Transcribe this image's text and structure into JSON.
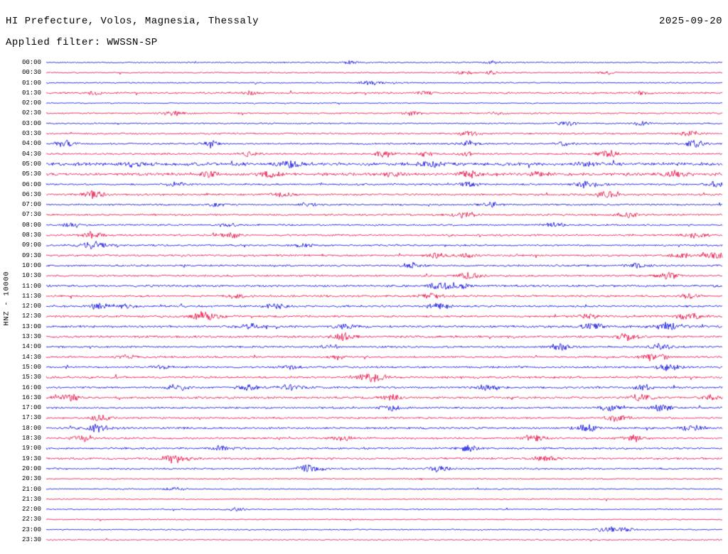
{
  "header": {
    "title": "HI Prefecture, Volos, Magnesia, Thessaly",
    "date": "2025-09-20",
    "filter_label": "Applied filter: WWSSN-SP"
  },
  "y_axis_label": "HNZ - 10000",
  "chart_data": {
    "type": "line",
    "kind": "seismogram-helicorder",
    "title": "HI Prefecture, Volos, Magnesia, Thessaly",
    "date": "2025-09-20",
    "filter": "WWSSN-SP",
    "channel": "HNZ",
    "gain": "10000",
    "row_interval_minutes": 30,
    "time_range": [
      "00:00",
      "23:30"
    ],
    "trace_color_cycle": [
      "blue",
      "red"
    ],
    "colors": {
      "blue": "#0000e0",
      "red": "#e8003c"
    },
    "rows": [
      {
        "time": "00:00",
        "color": "blue",
        "noise": 0.9,
        "bursts": [
          [
            0.45,
            1.5
          ],
          [
            0.66,
            1.5
          ]
        ]
      },
      {
        "time": "00:30",
        "color": "red",
        "noise": 0.9,
        "bursts": [
          [
            0.62,
            2.2
          ],
          [
            0.66,
            1.8
          ],
          [
            0.83,
            1.8
          ]
        ]
      },
      {
        "time": "01:00",
        "color": "blue",
        "noise": 0.9,
        "bursts": [
          [
            0.48,
            2.8
          ]
        ]
      },
      {
        "time": "01:30",
        "color": "red",
        "noise": 1.3,
        "bursts": [
          [
            0.07,
            1.8
          ],
          [
            0.3,
            1.8
          ],
          [
            0.56,
            1.8
          ],
          [
            0.88,
            1.8
          ]
        ]
      },
      {
        "time": "02:00",
        "color": "blue",
        "noise": 0.7,
        "bursts": []
      },
      {
        "time": "02:30",
        "color": "red",
        "noise": 1.0,
        "bursts": [
          [
            0.19,
            2.8
          ],
          [
            0.54,
            2.4
          ],
          [
            0.67,
            1.8
          ]
        ]
      },
      {
        "time": "03:00",
        "color": "blue",
        "noise": 1.0,
        "bursts": [
          [
            0.77,
            2.4
          ],
          [
            0.88,
            2.0
          ]
        ]
      },
      {
        "time": "03:30",
        "color": "red",
        "noise": 1.2,
        "bursts": [
          [
            0.625,
            2.4
          ],
          [
            0.95,
            3.2
          ]
        ]
      },
      {
        "time": "04:00",
        "color": "blue",
        "noise": 1.2,
        "bursts": [
          [
            0.03,
            3.4
          ],
          [
            0.24,
            2.4
          ],
          [
            0.625,
            3.0
          ],
          [
            0.77,
            2.0
          ],
          [
            0.96,
            3.4
          ]
        ]
      },
      {
        "time": "04:30",
        "color": "red",
        "noise": 1.2,
        "bursts": [
          [
            0.3,
            2.4
          ],
          [
            0.5,
            3.0
          ],
          [
            0.56,
            2.4
          ],
          [
            0.62,
            2.0
          ],
          [
            0.83,
            3.4
          ]
        ]
      },
      {
        "time": "05:00",
        "color": "blue",
        "noise": 2.2,
        "bursts": [
          [
            0.13,
            2.4
          ],
          [
            0.36,
            3.4
          ],
          [
            0.57,
            3.0
          ],
          [
            0.8,
            2.4
          ]
        ]
      },
      {
        "time": "05:30",
        "color": "red",
        "noise": 2.0,
        "bursts": [
          [
            0.24,
            3.0
          ],
          [
            0.33,
            3.0
          ],
          [
            0.51,
            2.4
          ],
          [
            0.625,
            3.0
          ],
          [
            0.73,
            2.4
          ],
          [
            0.93,
            3.0
          ]
        ]
      },
      {
        "time": "06:00",
        "color": "blue",
        "noise": 1.3,
        "bursts": [
          [
            0.19,
            2.4
          ],
          [
            0.625,
            3.0
          ],
          [
            0.8,
            3.4
          ],
          [
            0.99,
            3.0
          ]
        ]
      },
      {
        "time": "06:30",
        "color": "red",
        "noise": 1.4,
        "bursts": [
          [
            0.07,
            3.4
          ],
          [
            0.35,
            3.0
          ],
          [
            0.83,
            3.4
          ]
        ]
      },
      {
        "time": "07:00",
        "color": "blue",
        "noise": 1.2,
        "bursts": [
          [
            0.25,
            2.0
          ],
          [
            0.39,
            2.4
          ],
          [
            0.66,
            2.4
          ]
        ]
      },
      {
        "time": "07:30",
        "color": "red",
        "noise": 1.3,
        "bursts": [
          [
            0.62,
            3.4
          ],
          [
            0.86,
            3.0
          ]
        ]
      },
      {
        "time": "08:00",
        "color": "blue",
        "noise": 1.2,
        "bursts": [
          [
            0.04,
            2.4
          ],
          [
            0.27,
            2.4
          ],
          [
            0.75,
            2.4
          ]
        ]
      },
      {
        "time": "08:30",
        "color": "red",
        "noise": 1.3,
        "bursts": [
          [
            0.07,
            3.0
          ],
          [
            0.27,
            3.0
          ],
          [
            0.96,
            3.0
          ]
        ]
      },
      {
        "time": "09:00",
        "color": "blue",
        "noise": 1.2,
        "bursts": [
          [
            0.07,
            4.0
          ],
          [
            0.38,
            2.4
          ]
        ]
      },
      {
        "time": "09:30",
        "color": "red",
        "noise": 1.3,
        "bursts": [
          [
            0.58,
            3.0
          ],
          [
            0.625,
            2.4
          ],
          [
            0.94,
            3.0
          ],
          [
            0.99,
            3.4
          ]
        ]
      },
      {
        "time": "10:00",
        "color": "blue",
        "noise": 1.3,
        "bursts": [
          [
            0.54,
            3.0
          ],
          [
            0.87,
            3.0
          ]
        ]
      },
      {
        "time": "10:30",
        "color": "red",
        "noise": 1.3,
        "bursts": [
          [
            0.625,
            3.4
          ],
          [
            0.92,
            3.4
          ]
        ]
      },
      {
        "time": "11:00",
        "color": "blue",
        "noise": 1.5,
        "bursts": [
          [
            0.58,
            3.4
          ],
          [
            0.61,
            3.0
          ]
        ]
      },
      {
        "time": "11:30",
        "color": "red",
        "noise": 1.4,
        "bursts": [
          [
            0.28,
            2.4
          ],
          [
            0.57,
            3.0
          ],
          [
            0.95,
            2.4
          ]
        ]
      },
      {
        "time": "12:00",
        "color": "blue",
        "noise": 1.4,
        "bursts": [
          [
            0.08,
            3.0
          ],
          [
            0.12,
            2.4
          ],
          [
            0.34,
            3.0
          ],
          [
            0.58,
            3.4
          ]
        ]
      },
      {
        "time": "12:30",
        "color": "red",
        "noise": 1.4,
        "bursts": [
          [
            0.235,
            4.4
          ],
          [
            0.8,
            3.0
          ],
          [
            0.95,
            3.4
          ]
        ]
      },
      {
        "time": "13:00",
        "color": "blue",
        "noise": 1.5,
        "bursts": [
          [
            0.3,
            3.0
          ],
          [
            0.44,
            3.0
          ],
          [
            0.81,
            3.4
          ],
          [
            0.92,
            4.0
          ]
        ]
      },
      {
        "time": "13:30",
        "color": "red",
        "noise": 1.5,
        "bursts": [
          [
            0.44,
            4.4
          ],
          [
            0.86,
            3.4
          ]
        ]
      },
      {
        "time": "14:00",
        "color": "blue",
        "noise": 1.3,
        "bursts": [
          [
            0.42,
            2.4
          ],
          [
            0.76,
            3.4
          ],
          [
            0.91,
            3.0
          ]
        ]
      },
      {
        "time": "14:30",
        "color": "red",
        "noise": 1.3,
        "bursts": [
          [
            0.12,
            2.4
          ],
          [
            0.43,
            2.4
          ],
          [
            0.9,
            4.0
          ]
        ]
      },
      {
        "time": "15:00",
        "color": "blue",
        "noise": 1.3,
        "bursts": [
          [
            0.17,
            2.4
          ],
          [
            0.36,
            2.4
          ],
          [
            0.92,
            3.4
          ]
        ]
      },
      {
        "time": "15:30",
        "color": "red",
        "noise": 1.5,
        "bursts": [
          [
            0.47,
            3.4
          ],
          [
            0.49,
            3.0
          ]
        ]
      },
      {
        "time": "16:00",
        "color": "blue",
        "noise": 1.4,
        "bursts": [
          [
            0.195,
            3.0
          ],
          [
            0.3,
            3.4
          ],
          [
            0.36,
            3.0
          ],
          [
            0.655,
            3.0
          ],
          [
            0.88,
            3.0
          ]
        ]
      },
      {
        "time": "16:30",
        "color": "red",
        "noise": 1.4,
        "bursts": [
          [
            0.03,
            4.4
          ],
          [
            0.51,
            3.4
          ],
          [
            0.88,
            3.4
          ],
          [
            0.985,
            3.0
          ]
        ]
      },
      {
        "time": "17:00",
        "color": "blue",
        "noise": 1.3,
        "bursts": [
          [
            0.51,
            3.0
          ],
          [
            0.835,
            3.0
          ],
          [
            0.91,
            3.4
          ]
        ]
      },
      {
        "time": "17:30",
        "color": "red",
        "noise": 1.3,
        "bursts": [
          [
            0.08,
            3.0
          ],
          [
            0.845,
            3.4
          ]
        ]
      },
      {
        "time": "18:00",
        "color": "blue",
        "noise": 1.4,
        "bursts": [
          [
            0.075,
            4.4
          ],
          [
            0.8,
            3.4
          ],
          [
            0.955,
            3.4
          ]
        ]
      },
      {
        "time": "18:30",
        "color": "red",
        "noise": 1.3,
        "bursts": [
          [
            0.055,
            3.0
          ],
          [
            0.435,
            3.0
          ],
          [
            0.72,
            3.4
          ],
          [
            0.865,
            3.4
          ]
        ]
      },
      {
        "time": "19:00",
        "color": "blue",
        "noise": 1.3,
        "bursts": [
          [
            0.26,
            3.0
          ],
          [
            0.625,
            3.0
          ]
        ]
      },
      {
        "time": "19:30",
        "color": "red",
        "noise": 1.4,
        "bursts": [
          [
            0.19,
            5.0
          ],
          [
            0.74,
            3.4
          ]
        ]
      },
      {
        "time": "20:00",
        "color": "blue",
        "noise": 1.2,
        "bursts": [
          [
            0.39,
            4.0
          ],
          [
            0.58,
            3.0
          ]
        ]
      },
      {
        "time": "20:30",
        "color": "red",
        "noise": 0.9,
        "bursts": []
      },
      {
        "time": "21:00",
        "color": "blue",
        "noise": 0.9,
        "bursts": [
          [
            0.19,
            2.4
          ]
        ]
      },
      {
        "time": "21:30",
        "color": "red",
        "noise": 0.9,
        "bursts": []
      },
      {
        "time": "22:00",
        "color": "blue",
        "noise": 0.8,
        "bursts": [
          [
            0.28,
            2.4
          ]
        ]
      },
      {
        "time": "22:30",
        "color": "red",
        "noise": 0.8,
        "bursts": []
      },
      {
        "time": "23:00",
        "color": "blue",
        "noise": 0.9,
        "bursts": [
          [
            0.83,
            3.0
          ],
          [
            0.855,
            2.4
          ]
        ]
      },
      {
        "time": "23:30",
        "color": "red",
        "noise": 0.9,
        "bursts": []
      }
    ]
  }
}
